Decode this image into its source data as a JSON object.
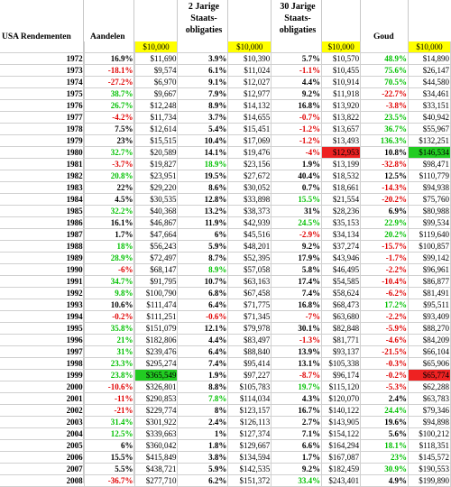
{
  "headers": {
    "title": "USA Rendementen",
    "stocks": "Aandelen",
    "bonds2": [
      "2 Jarige",
      "Staats-",
      "obligaties"
    ],
    "bonds30": [
      "30 Jarige",
      "Staats-",
      "obligaties"
    ],
    "gold": "Goud",
    "start_amount": "$10,000"
  },
  "colors": {
    "positive": "#00c000",
    "negative": "#e00000",
    "highlight_best": "#22cc22",
    "highlight_worst": "#ee2222",
    "start_cell": "#ffff00"
  },
  "rows": [
    {
      "year": "1972",
      "s": "16.9%",
      "sv": "$11,690",
      "b2": "3.9%",
      "b2v": "$10,390",
      "b30": "5.7%",
      "b30v": "$10,570",
      "g": "48.9%",
      "gv": "$14,890"
    },
    {
      "year": "1973",
      "s": "-18.1%",
      "sv": "$9,574",
      "b2": "6.1%",
      "b2v": "$11,024",
      "b30": "-1.1%",
      "b30v": "$10,455",
      "g": "75.6%",
      "gv": "$26,147"
    },
    {
      "year": "1974",
      "s": "-27.2%",
      "sv": "$6,970",
      "b2": "9.1%",
      "b2v": "$12,027",
      "b30": "4.4%",
      "b30v": "$10,914",
      "g": "70.5%",
      "gv": "$44,580"
    },
    {
      "year": "1975",
      "s": "38.7%",
      "sv": "$9,667",
      "b2": "7.9%",
      "b2v": "$12,977",
      "b30": "9.2%",
      "b30v": "$11,918",
      "g": "-22.7%",
      "gv": "$34,461"
    },
    {
      "year": "1976",
      "s": "26.7%",
      "sv": "$12,248",
      "b2": "8.9%",
      "b2v": "$14,132",
      "b30": "16.8%",
      "b30v": "$13,920",
      "g": "-3.8%",
      "gv": "$33,151"
    },
    {
      "year": "1977",
      "s": "-4.2%",
      "sv": "$11,734",
      "b2": "3.7%",
      "b2v": "$14,655",
      "b30": "-0.7%",
      "b30v": "$13,822",
      "g": "23.5%",
      "gv": "$40,942"
    },
    {
      "year": "1978",
      "s": "7.5%",
      "sv": "$12,614",
      "b2": "5.4%",
      "b2v": "$15,451",
      "b30": "-1.2%",
      "b30v": "$13,657",
      "g": "36.7%",
      "gv": "$55,967"
    },
    {
      "year": "1979",
      "s": "23%",
      "sv": "$15,515",
      "b2": "10.4%",
      "b2v": "$17,069",
      "b30": "-1.2%",
      "b30v": "$13,493",
      "g": "136.3%",
      "gv": "$132,251"
    },
    {
      "year": "1980",
      "s": "32.7%",
      "sv": "$20,589",
      "b2": "14.1%",
      "b2v": "$19,476",
      "b30": "-4%",
      "b30v": "$12,953",
      "g": "10.8%",
      "gv": "$146,534"
    },
    {
      "year": "1981",
      "s": "-3.7%",
      "sv": "$19,827",
      "b2": "18.9%",
      "b2v": "$23,156",
      "b30": "1.9%",
      "b30v": "$13,199",
      "g": "-32.8%",
      "gv": "$98,471"
    },
    {
      "year": "1982",
      "s": "20.8%",
      "sv": "$23,951",
      "b2": "19.5%",
      "b2v": "$27,672",
      "b30": "40.4%",
      "b30v": "$18,532",
      "g": "12.5%",
      "gv": "$110,779"
    },
    {
      "year": "1983",
      "s": "22%",
      "sv": "$29,220",
      "b2": "8.6%",
      "b2v": "$30,052",
      "b30": "0.7%",
      "b30v": "$18,661",
      "g": "-14.3%",
      "gv": "$94,938"
    },
    {
      "year": "1984",
      "s": "4.5%",
      "sv": "$30,535",
      "b2": "12.8%",
      "b2v": "$33,898",
      "b30": "15.5%",
      "b30v": "$21,554",
      "g": "-20.2%",
      "gv": "$75,760"
    },
    {
      "year": "1985",
      "s": "32.2%",
      "sv": "$40,368",
      "b2": "13.2%",
      "b2v": "$38,373",
      "b30": "31%",
      "b30v": "$28,236",
      "g": "6.9%",
      "gv": "$80,988"
    },
    {
      "year": "1986",
      "s": "16.1%",
      "sv": "$46,867",
      "b2": "11.9%",
      "b2v": "$42,939",
      "b30": "24.5%",
      "b30v": "$35,153",
      "g": "22.9%",
      "gv": "$99,534"
    },
    {
      "year": "1987",
      "s": "1.7%",
      "sv": "$47,664",
      "b2": "6%",
      "b2v": "$45,516",
      "b30": "-2.9%",
      "b30v": "$34,134",
      "g": "20.2%",
      "gv": "$119,640"
    },
    {
      "year": "1988",
      "s": "18%",
      "sv": "$56,243",
      "b2": "5.9%",
      "b2v": "$48,201",
      "b30": "9.2%",
      "b30v": "$37,274",
      "g": "-15.7%",
      "gv": "$100,857"
    },
    {
      "year": "1989",
      "s": "28.9%",
      "sv": "$72,497",
      "b2": "8.7%",
      "b2v": "$52,395",
      "b30": "17.9%",
      "b30v": "$43,946",
      "g": "-1.7%",
      "gv": "$99,142"
    },
    {
      "year": "1990",
      "s": "-6%",
      "sv": "$68,147",
      "b2": "8.9%",
      "b2v": "$57,058",
      "b30": "5.8%",
      "b30v": "$46,495",
      "g": "-2.2%",
      "gv": "$96,961"
    },
    {
      "year": "1991",
      "s": "34.7%",
      "sv": "$91,795",
      "b2": "10.7%",
      "b2v": "$63,163",
      "b30": "17.4%",
      "b30v": "$54,585",
      "g": "-10.4%",
      "gv": "$86,877"
    },
    {
      "year": "1992",
      "s": "9.8%",
      "sv": "$100,790",
      "b2": "6.8%",
      "b2v": "$67,458",
      "b30": "7.4%",
      "b30v": "$58,624",
      "g": "-6.2%",
      "gv": "$81,491"
    },
    {
      "year": "1993",
      "s": "10.6%",
      "sv": "$111,474",
      "b2": "6.4%",
      "b2v": "$71,775",
      "b30": "16.8%",
      "b30v": "$68,473",
      "g": "17.2%",
      "gv": "$95,511"
    },
    {
      "year": "1994",
      "s": "-0.2%",
      "sv": "$111,251",
      "b2": "-0.6%",
      "b2v": "$71,345",
      "b30": "-7%",
      "b30v": "$63,680",
      "g": "-2.2%",
      "gv": "$93,409"
    },
    {
      "year": "1995",
      "s": "35.8%",
      "sv": "$151,079",
      "b2": "12.1%",
      "b2v": "$79,978",
      "b30": "30.1%",
      "b30v": "$82,848",
      "g": "-5.9%",
      "gv": "$88,270"
    },
    {
      "year": "1996",
      "s": "21%",
      "sv": "$182,806",
      "b2": "4.4%",
      "b2v": "$83,497",
      "b30": "-1.3%",
      "b30v": "$81,771",
      "g": "-4.6%",
      "gv": "$84,209"
    },
    {
      "year": "1997",
      "s": "31%",
      "sv": "$239,476",
      "b2": "6.4%",
      "b2v": "$88,840",
      "b30": "13.9%",
      "b30v": "$93,137",
      "g": "-21.5%",
      "gv": "$66,104"
    },
    {
      "year": "1998",
      "s": "23.3%",
      "sv": "$295,274",
      "b2": "7.4%",
      "b2v": "$95,414",
      "b30": "13.1%",
      "b30v": "$105,338",
      "g": "-0.3%",
      "gv": "$65,906"
    },
    {
      "year": "1999",
      "s": "23.8%",
      "sv": "$365,549",
      "b2": "1.9%",
      "b2v": "$97,227",
      "b30": "-8.7%",
      "b30v": "$96,174",
      "g": "-0.2%",
      "gv": "$65,774"
    },
    {
      "year": "2000",
      "s": "-10.6%",
      "sv": "$326,801",
      "b2": "8.8%",
      "b2v": "$105,783",
      "b30": "19.7%",
      "b30v": "$115,120",
      "g": "-5.3%",
      "gv": "$62,288"
    },
    {
      "year": "2001",
      "s": "-11%",
      "sv": "$290,853",
      "b2": "7.8%",
      "b2v": "$114,034",
      "b30": "4.3%",
      "b30v": "$120,070",
      "g": "2.4%",
      "gv": "$63,783"
    },
    {
      "year": "2002",
      "s": "-21%",
      "sv": "$229,774",
      "b2": "8%",
      "b2v": "$123,157",
      "b30": "16.7%",
      "b30v": "$140,122",
      "g": "24.4%",
      "gv": "$79,346"
    },
    {
      "year": "2003",
      "s": "31.4%",
      "sv": "$301,922",
      "b2": "2.4%",
      "b2v": "$126,113",
      "b30": "2.7%",
      "b30v": "$143,905",
      "g": "19.6%",
      "gv": "$94,898"
    },
    {
      "year": "2004",
      "s": "12.5%",
      "sv": "$339,663",
      "b2": "1%",
      "b2v": "$127,374",
      "b30": "7.1%",
      "b30v": "$154,122",
      "g": "5.6%",
      "gv": "$100,212"
    },
    {
      "year": "2005",
      "s": "6%",
      "sv": "$360,042",
      "b2": "1.8%",
      "b2v": "$129,667",
      "b30": "6.6%",
      "b30v": "$164,294",
      "g": "18.1%",
      "gv": "$118,351"
    },
    {
      "year": "2006",
      "s": "15.5%",
      "sv": "$415,849",
      "b2": "3.8%",
      "b2v": "$134,594",
      "b30": "1.7%",
      "b30v": "$167,087",
      "g": "23%",
      "gv": "$145,572"
    },
    {
      "year": "2007",
      "s": "5.5%",
      "sv": "$438,721",
      "b2": "5.9%",
      "b2v": "$142,535",
      "b30": "9.2%",
      "b30v": "$182,459",
      "g": "30.9%",
      "gv": "$190,553"
    },
    {
      "year": "2008",
      "s": "-36.7%",
      "sv": "$277,710",
      "b2": "6.2%",
      "b2v": "$151,372",
      "b30": "33.4%",
      "b30v": "$243,401",
      "g": "4.9%",
      "gv": "$199,890"
    }
  ]
}
